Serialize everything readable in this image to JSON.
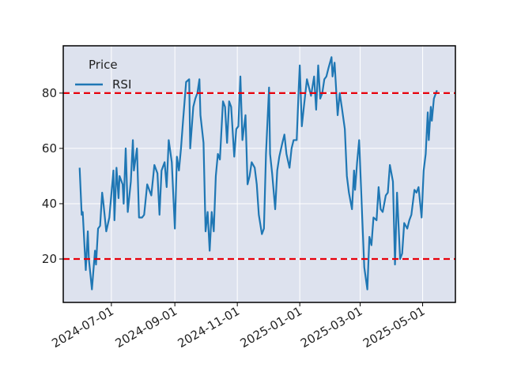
{
  "chart_data": {
    "type": "line",
    "legend_title": "Price",
    "legend_loc": "upper left",
    "x": [
      "2024-05-31",
      "2024-06-02",
      "2024-06-03",
      "2024-06-06",
      "2024-06-08",
      "2024-06-09",
      "2024-06-12",
      "2024-06-15",
      "2024-06-16",
      "2024-06-18",
      "2024-06-20",
      "2024-06-22",
      "2024-06-23",
      "2024-06-26",
      "2024-06-29",
      "2024-07-03",
      "2024-07-04",
      "2024-07-06",
      "2024-07-08",
      "2024-07-09",
      "2024-07-12",
      "2024-07-13",
      "2024-07-15",
      "2024-07-17",
      "2024-07-20",
      "2024-07-22",
      "2024-07-23",
      "2024-07-26",
      "2024-07-28",
      "2024-07-31",
      "2024-08-02",
      "2024-08-05",
      "2024-08-07",
      "2024-08-09",
      "2024-08-12",
      "2024-08-15",
      "2024-08-17",
      "2024-08-19",
      "2024-08-22",
      "2024-08-24",
      "2024-08-26",
      "2024-08-29",
      "2024-09-01",
      "2024-09-03",
      "2024-09-05",
      "2024-09-07",
      "2024-09-09",
      "2024-09-12",
      "2024-09-15",
      "2024-09-16",
      "2024-09-19",
      "2024-09-21",
      "2024-09-23",
      "2024-09-25",
      "2024-09-26",
      "2024-09-29",
      "2024-10-01",
      "2024-10-03",
      "2024-10-05",
      "2024-10-07",
      "2024-10-09",
      "2024-10-11",
      "2024-10-13",
      "2024-10-15",
      "2024-10-18",
      "2024-10-20",
      "2024-10-22",
      "2024-10-24",
      "2024-10-26",
      "2024-10-29",
      "2024-10-31",
      "2024-11-02",
      "2024-11-04",
      "2024-11-06",
      "2024-11-09",
      "2024-11-11",
      "2024-11-13",
      "2024-11-15",
      "2024-11-18",
      "2024-11-20",
      "2024-11-22",
      "2024-11-25",
      "2024-11-27",
      "2024-11-29",
      "2024-12-02",
      "2024-12-03",
      "2024-12-05",
      "2024-12-08",
      "2024-12-10",
      "2024-12-12",
      "2024-12-15",
      "2024-12-17",
      "2024-12-19",
      "2024-12-22",
      "2024-12-24",
      "2024-12-26",
      "2024-12-29",
      "2024-12-31",
      "2025-01-01",
      "2025-01-03",
      "2025-01-05",
      "2025-01-08",
      "2025-01-10",
      "2025-01-12",
      "2025-01-15",
      "2025-01-17",
      "2025-01-19",
      "2025-01-21",
      "2025-01-23",
      "2025-01-25",
      "2025-01-27",
      "2025-01-29",
      "2025-02-01",
      "2025-02-02",
      "2025-02-04",
      "2025-02-07",
      "2025-02-09",
      "2025-02-11",
      "2025-02-14",
      "2025-02-16",
      "2025-02-18",
      "2025-02-21",
      "2025-02-23",
      "2025-02-24",
      "2025-02-26",
      "2025-02-28",
      "2025-03-03",
      "2025-03-05",
      "2025-03-08",
      "2025-03-10",
      "2025-03-12",
      "2025-03-14",
      "2025-03-17",
      "2025-03-19",
      "2025-03-21",
      "2025-03-23",
      "2025-03-26",
      "2025-03-28",
      "2025-03-30",
      "2025-04-02",
      "2025-04-04",
      "2025-04-06",
      "2025-04-09",
      "2025-04-11",
      "2025-04-13",
      "2025-04-16",
      "2025-04-18",
      "2025-04-20",
      "2025-04-23",
      "2025-04-25",
      "2025-04-27",
      "2025-04-30",
      "2025-05-02",
      "2025-05-04",
      "2025-05-06",
      "2025-05-07",
      "2025-05-09",
      "2025-05-10",
      "2025-05-12",
      "2025-05-13",
      "2025-05-15"
    ],
    "series": [
      {
        "name": "RSI",
        "color": "#1f77b4",
        "values": [
          53,
          36,
          37,
          16,
          30,
          20,
          9,
          23,
          18,
          31,
          32,
          44,
          41,
          30,
          35,
          52,
          34,
          53,
          42,
          50,
          47,
          40,
          60,
          37,
          48,
          63,
          52,
          60,
          35,
          35,
          36,
          47,
          45,
          43,
          54,
          51,
          36,
          52,
          55,
          46,
          63,
          55,
          31,
          57,
          52,
          60,
          70,
          84,
          85,
          60,
          75,
          78,
          80,
          85,
          72,
          62,
          30,
          37,
          23,
          37,
          30,
          50,
          58,
          56,
          77,
          75,
          62,
          77,
          75,
          57,
          67,
          68,
          86,
          63,
          72,
          47,
          50,
          55,
          53,
          47,
          36,
          29,
          31,
          58,
          82,
          58,
          51,
          38,
          52,
          57,
          62,
          65,
          58,
          53,
          60,
          63,
          63,
          82,
          90,
          68,
          75,
          85,
          82,
          79,
          86,
          74,
          90,
          78,
          80,
          85,
          86,
          89,
          93,
          86,
          91,
          72,
          80,
          75,
          67,
          50,
          44,
          38,
          52,
          45,
          55,
          63,
          35,
          17,
          9,
          28,
          25,
          35,
          34,
          46,
          38,
          37,
          43,
          44,
          54,
          48,
          18,
          44,
          20,
          22,
          33,
          31,
          34,
          36,
          45,
          44,
          46,
          35,
          52,
          58,
          73,
          63,
          75,
          70,
          78,
          79,
          81
        ]
      }
    ],
    "hlines": [
      80,
      20
    ],
    "hline_color": "#e8000b",
    "xlim": [
      "2024-05-15",
      "2025-06-02"
    ],
    "xticks": [
      "2024-07-01",
      "2024-09-01",
      "2024-11-01",
      "2025-01-01",
      "2025-03-01",
      "2025-05-01"
    ],
    "ylim": [
      4.3,
      97.1
    ],
    "yticks": [
      20,
      40,
      60,
      80
    ],
    "grid": true
  }
}
